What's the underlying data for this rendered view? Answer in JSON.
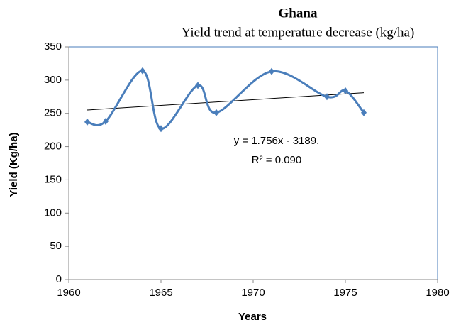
{
  "chart_data": {
    "type": "scatter",
    "title": "Ghana",
    "subtitle": "Yield trend at temperature decrease (kg/ha)",
    "x_label": "Years",
    "y_label": "Yield (Kg/ha)",
    "annotations": [
      "y = 1.756x - 3189.",
      "R² = 0.090"
    ],
    "series": [
      {
        "name": "Yield",
        "color": "#4a7ebb",
        "x": [
          1961,
          1962,
          1964,
          1965,
          1967,
          1968,
          1971,
          1974,
          1975,
          1976
        ],
        "values": [
          237,
          238,
          314,
          227,
          292,
          251,
          313,
          275,
          284,
          251
        ]
      }
    ],
    "trendline": {
      "color": "#000000",
      "x": [
        1961,
        1976
      ],
      "values": [
        255,
        281
      ]
    },
    "xlim": [
      1960,
      1980
    ],
    "xticks": [
      1960,
      1965,
      1970,
      1975,
      1980
    ],
    "ylim": [
      0,
      350
    ],
    "yticks": [
      0,
      50,
      100,
      150,
      200,
      250,
      300,
      350
    ],
    "grid": false
  }
}
